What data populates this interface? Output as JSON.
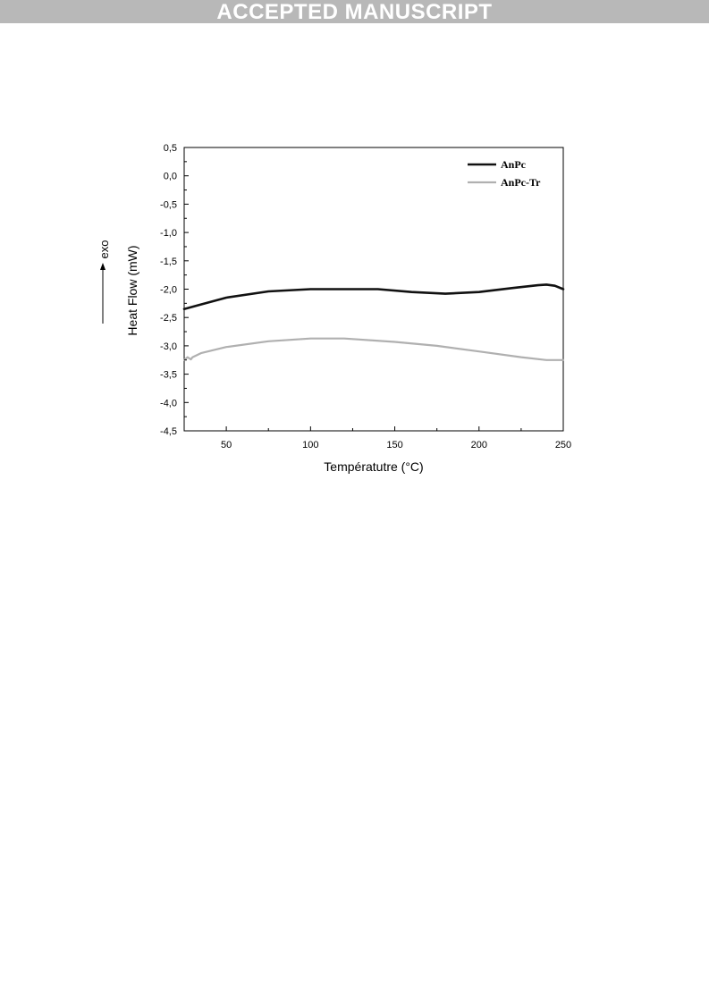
{
  "banner": {
    "text": "ACCEPTED MANUSCRIPT"
  },
  "annotation": {
    "text": "exo"
  },
  "colors": {
    "banner": "#b8b8b8",
    "series_1": "#111111",
    "series_2": "#b0b0b0"
  },
  "chart_data": {
    "type": "line",
    "title": "",
    "xlabel": "Températutre (°C)",
    "ylabel": "Heat Flow (mW)",
    "xlim": [
      25,
      250
    ],
    "ylim": [
      -4.5,
      0.5
    ],
    "x_ticks": [
      50,
      100,
      150,
      200,
      250
    ],
    "x_tick_labels": [
      "50",
      "100",
      "150",
      "200",
      "250"
    ],
    "y_ticks": [
      0.5,
      0.0,
      -0.5,
      -1.0,
      -1.5,
      -2.0,
      -2.5,
      -3.0,
      -3.5,
      -4.0,
      -4.5
    ],
    "y_tick_labels": [
      "0,5",
      "0,0",
      "-0,5",
      "-1,0",
      "-1,5",
      "-2,0",
      "-2,5",
      "-3,0",
      "-3,5",
      "-4,0",
      "-4,5"
    ],
    "grid": false,
    "legend_position": "top-right",
    "series": [
      {
        "name": "AnPc",
        "color": "#111111",
        "points": [
          [
            25,
            -2.35
          ],
          [
            35,
            -2.27
          ],
          [
            50,
            -2.15
          ],
          [
            75,
            -2.04
          ],
          [
            100,
            -2.0
          ],
          [
            125,
            -2.0
          ],
          [
            140,
            -2.0
          ],
          [
            160,
            -2.05
          ],
          [
            180,
            -2.08
          ],
          [
            200,
            -2.05
          ],
          [
            220,
            -1.98
          ],
          [
            235,
            -1.93
          ],
          [
            240,
            -1.92
          ],
          [
            245,
            -1.94
          ],
          [
            250,
            -2.0
          ]
        ]
      },
      {
        "name": "AnPc-Tr",
        "color": "#b0b0b0",
        "points": [
          [
            25,
            -3.25
          ],
          [
            27,
            -3.2
          ],
          [
            29,
            -3.24
          ],
          [
            30,
            -3.2
          ],
          [
            35,
            -3.13
          ],
          [
            50,
            -3.02
          ],
          [
            75,
            -2.92
          ],
          [
            100,
            -2.87
          ],
          [
            120,
            -2.87
          ],
          [
            150,
            -2.93
          ],
          [
            175,
            -3.0
          ],
          [
            200,
            -3.1
          ],
          [
            225,
            -3.2
          ],
          [
            240,
            -3.25
          ],
          [
            250,
            -3.25
          ]
        ]
      }
    ]
  }
}
